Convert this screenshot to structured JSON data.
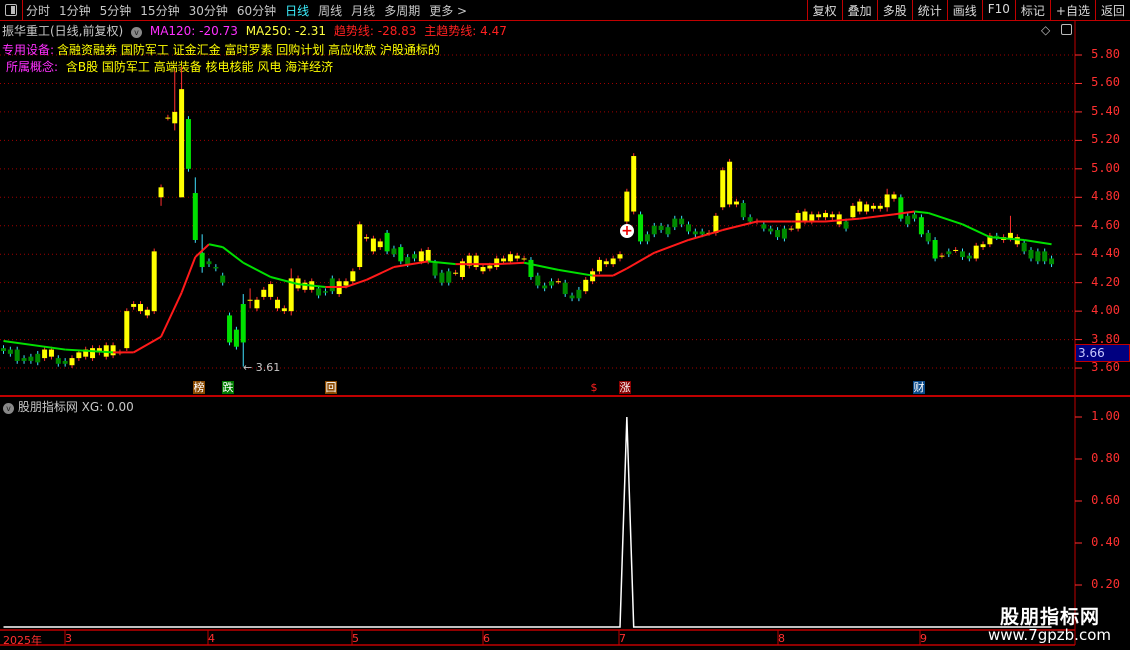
{
  "toolbar": {
    "periods": [
      "分时",
      "1分钟",
      "5分钟",
      "15分钟",
      "30分钟",
      "60分钟",
      "日线",
      "周线",
      "月线",
      "多周期",
      "更多 >"
    ],
    "active_period": "日线",
    "buttons": [
      "复权",
      "叠加",
      "多股",
      "统计",
      "画线",
      "F10",
      "标记",
      "+自选",
      "返回"
    ]
  },
  "header": {
    "title": "振华重工(日线,前复权)",
    "ma120": "MA120: -20.73",
    "ma250": "MA250: -2.31",
    "trend": "趋势线: -28.83",
    "main_trend": "主趋势线: 4.47",
    "industry_label": "专用设备:",
    "industry_tags": "含融资融券 国防军工 证金汇金 富时罗素 回购计划 高应收款 沪股通标的",
    "concept_label": "所属概念:",
    "concept_tags": "含B股 国防军工 高端装备 核电核能 风电 海洋经济"
  },
  "colors": {
    "up": "#ffff00",
    "down": "#00a000",
    "trend_up": "#ff1a1a",
    "trend_down": "#00e000",
    "axis": "#ff3030",
    "border": "#c00000"
  },
  "price_axis": [
    "5.80",
    "5.60",
    "5.40",
    "5.20",
    "5.00",
    "4.80",
    "4.60",
    "4.40",
    "4.20",
    "4.00",
    "3.80",
    "3.60"
  ],
  "current_price": "3.66",
  "low_annotation": "3.61",
  "markers": [
    {
      "text": "榜",
      "bg": "#8a4a00",
      "color": "#fff"
    },
    {
      "text": "跌",
      "bg": "#007a00",
      "color": "#fff"
    },
    {
      "text": "回",
      "bg": "#8a4a00",
      "color": "#fff"
    },
    {
      "text": "$",
      "bg": "transparent",
      "color": "#ff2020"
    },
    {
      "text": "涨",
      "bg": "#8a0000",
      "color": "#fff"
    },
    {
      "text": "财",
      "bg": "#0a4a8a",
      "color": "#fff"
    }
  ],
  "indicator": {
    "title": "股朋指标网",
    "value": "XG: 0.00",
    "axis": [
      "1.00",
      "0.80",
      "0.60",
      "0.40",
      "0.20"
    ]
  },
  "date_axis": [
    "2025年",
    "3",
    "4",
    "5",
    "6",
    "7",
    "8",
    "9"
  ],
  "watermark": {
    "name": "股朋指标网",
    "url": "www.7gpzb.com"
  },
  "chart_data": [
    {
      "type": "candlestick",
      "ylim": [
        3.55,
        5.85
      ],
      "candles_open_close": [
        [
          3.74,
          3.72
        ],
        [
          3.73,
          3.7
        ],
        [
          3.73,
          3.65
        ],
        [
          3.67,
          3.65
        ],
        [
          3.68,
          3.65
        ],
        [
          3.7,
          3.64
        ],
        [
          3.67,
          3.73
        ],
        [
          3.68,
          3.73
        ],
        [
          3.67,
          3.63
        ],
        [
          3.65,
          3.63
        ],
        [
          3.62,
          3.67
        ],
        [
          3.67,
          3.71
        ],
        [
          3.68,
          3.73
        ],
        [
          3.67,
          3.74
        ],
        [
          3.71,
          3.74
        ],
        [
          3.68,
          3.76
        ],
        [
          3.69,
          3.76
        ],
        [
          3.71,
          3.71
        ],
        [
          3.74,
          4.0
        ],
        [
          4.03,
          4.05
        ],
        [
          4.0,
          4.05
        ],
        [
          3.97,
          4.01
        ],
        [
          4.0,
          4.42
        ],
        [
          4.8,
          4.87
        ],
        [
          5.36,
          5.36
        ],
        [
          5.32,
          5.4
        ],
        [
          4.8,
          5.56
        ],
        [
          5.35,
          5.0
        ],
        [
          4.83,
          4.5
        ],
        [
          4.41,
          4.31
        ],
        [
          4.35,
          4.33
        ],
        [
          4.31,
          4.3
        ],
        [
          4.25,
          4.2
        ],
        [
          3.97,
          3.78
        ],
        [
          3.87,
          3.75
        ],
        [
          4.05,
          3.78
        ],
        [
          4.08,
          4.08
        ],
        [
          4.02,
          4.08
        ],
        [
          4.1,
          4.15
        ],
        [
          4.1,
          4.19
        ],
        [
          4.02,
          4.08
        ],
        [
          4.0,
          4.02
        ],
        [
          4.0,
          4.23
        ],
        [
          4.16,
          4.23
        ],
        [
          4.15,
          4.2
        ],
        [
          4.15,
          4.21
        ],
        [
          4.16,
          4.11
        ],
        [
          4.14,
          4.13
        ],
        [
          4.23,
          4.14
        ],
        [
          4.12,
          4.21
        ],
        [
          4.18,
          4.21
        ],
        [
          4.21,
          4.28
        ],
        [
          4.31,
          4.61
        ],
        [
          4.51,
          4.52
        ],
        [
          4.42,
          4.51
        ],
        [
          4.45,
          4.49
        ],
        [
          4.55,
          4.42
        ],
        [
          4.44,
          4.4
        ],
        [
          4.45,
          4.35
        ],
        [
          4.38,
          4.33
        ],
        [
          4.4,
          4.37
        ],
        [
          4.35,
          4.42
        ],
        [
          4.35,
          4.43
        ],
        [
          4.34,
          4.25
        ],
        [
          4.27,
          4.2
        ],
        [
          4.28,
          4.2
        ],
        [
          4.27,
          4.27
        ],
        [
          4.24,
          4.35
        ],
        [
          4.32,
          4.39
        ],
        [
          4.31,
          4.39
        ],
        [
          4.28,
          4.31
        ],
        [
          4.3,
          4.32
        ],
        [
          4.31,
          4.37
        ],
        [
          4.35,
          4.37
        ],
        [
          4.35,
          4.4
        ],
        [
          4.37,
          4.39
        ],
        [
          4.37,
          4.37
        ],
        [
          4.36,
          4.24
        ],
        [
          4.25,
          4.18
        ],
        [
          4.18,
          4.16
        ],
        [
          4.21,
          4.18
        ],
        [
          4.21,
          4.21
        ],
        [
          4.2,
          4.12
        ],
        [
          4.11,
          4.09
        ],
        [
          4.15,
          4.09
        ],
        [
          4.14,
          4.22
        ],
        [
          4.21,
          4.28
        ],
        [
          4.28,
          4.36
        ],
        [
          4.33,
          4.35
        ],
        [
          4.33,
          4.37
        ],
        [
          4.37,
          4.4
        ],
        [
          4.63,
          4.84
        ],
        [
          4.7,
          5.09
        ],
        [
          4.68,
          4.49
        ],
        [
          4.54,
          4.49
        ],
        [
          4.6,
          4.54
        ],
        [
          4.6,
          4.57
        ],
        [
          4.59,
          4.54
        ],
        [
          4.65,
          4.59
        ],
        [
          4.65,
          4.61
        ],
        [
          4.61,
          4.56
        ],
        [
          4.56,
          4.54
        ],
        [
          4.56,
          4.54
        ],
        [
          4.55,
          4.55
        ],
        [
          4.55,
          4.67
        ],
        [
          4.73,
          4.99
        ],
        [
          4.75,
          5.05
        ],
        [
          4.75,
          4.77
        ],
        [
          4.76,
          4.66
        ],
        [
          4.66,
          4.63
        ],
        [
          4.63,
          4.63
        ],
        [
          4.61,
          4.58
        ],
        [
          4.58,
          4.56
        ],
        [
          4.57,
          4.52
        ],
        [
          4.58,
          4.51
        ],
        [
          4.58,
          4.58
        ],
        [
          4.58,
          4.69
        ],
        [
          4.63,
          4.7
        ],
        [
          4.63,
          4.68
        ],
        [
          4.66,
          4.68
        ],
        [
          4.66,
          4.69
        ],
        [
          4.66,
          4.68
        ],
        [
          4.61,
          4.68
        ],
        [
          4.63,
          4.58
        ],
        [
          4.66,
          4.74
        ],
        [
          4.7,
          4.77
        ],
        [
          4.7,
          4.75
        ],
        [
          4.72,
          4.74
        ],
        [
          4.72,
          4.74
        ],
        [
          4.73,
          4.82
        ],
        [
          4.79,
          4.82
        ],
        [
          4.8,
          4.65
        ],
        [
          4.67,
          4.61
        ],
        [
          4.68,
          4.65
        ],
        [
          4.66,
          4.54
        ],
        [
          4.55,
          4.49
        ],
        [
          4.5,
          4.37
        ],
        [
          4.39,
          4.39
        ],
        [
          4.42,
          4.4
        ],
        [
          4.43,
          4.43
        ],
        [
          4.42,
          4.38
        ],
        [
          4.39,
          4.37
        ],
        [
          4.37,
          4.46
        ],
        [
          4.45,
          4.47
        ],
        [
          4.47,
          4.53
        ],
        [
          4.53,
          4.52
        ],
        [
          4.5,
          4.52
        ],
        [
          4.51,
          4.55
        ],
        [
          4.47,
          4.52
        ],
        [
          4.48,
          4.42
        ],
        [
          4.43,
          4.37
        ],
        [
          4.42,
          4.35
        ],
        [
          4.42,
          4.35
        ],
        [
          4.37,
          4.33
        ]
      ],
      "high_low_overrides": {
        "23": [
          4.44,
          3.98
        ],
        "24": [
          4.89,
          4.74
        ],
        "26": [
          5.69,
          5.27
        ],
        "27": [
          5.72,
          4.8
        ],
        "29": [
          4.94,
          4.48
        ],
        "30": [
          4.54,
          4.27
        ],
        "36": [
          4.12,
          3.61
        ],
        "37": [
          4.16,
          4.02
        ],
        "43": [
          4.3,
          3.97
        ],
        "130": [
          4.86,
          4.7
        ],
        "148": [
          4.67,
          4.49
        ]
      },
      "trend_line": [
        [
          1,
          3.79
        ],
        [
          10,
          3.73
        ],
        [
          17,
          3.71
        ],
        [
          20,
          3.71
        ],
        [
          24,
          3.82
        ],
        [
          27,
          4.13
        ],
        [
          29,
          4.38
        ],
        [
          31,
          4.47
        ],
        [
          33,
          4.45
        ],
        [
          36,
          4.34
        ],
        [
          40,
          4.24
        ],
        [
          44,
          4.19
        ],
        [
          48,
          4.17
        ],
        [
          51,
          4.17
        ],
        [
          54,
          4.22
        ],
        [
          58,
          4.31
        ],
        [
          63,
          4.35
        ],
        [
          67,
          4.33
        ],
        [
          73,
          4.33
        ],
        [
          77,
          4.34
        ],
        [
          82,
          4.29
        ],
        [
          87,
          4.25
        ],
        [
          90,
          4.25
        ],
        [
          92,
          4.3
        ],
        [
          96,
          4.41
        ],
        [
          101,
          4.5
        ],
        [
          106,
          4.57
        ],
        [
          111,
          4.63
        ],
        [
          116,
          4.63
        ],
        [
          121,
          4.63
        ],
        [
          126,
          4.65
        ],
        [
          131,
          4.68
        ],
        [
          134,
          4.7
        ],
        [
          136,
          4.69
        ],
        [
          141,
          4.61
        ],
        [
          145,
          4.52
        ],
        [
          150,
          4.5
        ],
        [
          154,
          4.47
        ]
      ]
    },
    {
      "type": "line",
      "series": [
        {
          "name": "XG",
          "spikes": {
            "92": 1.0
          }
        }
      ],
      "ylim": [
        0,
        1.05
      ]
    }
  ]
}
